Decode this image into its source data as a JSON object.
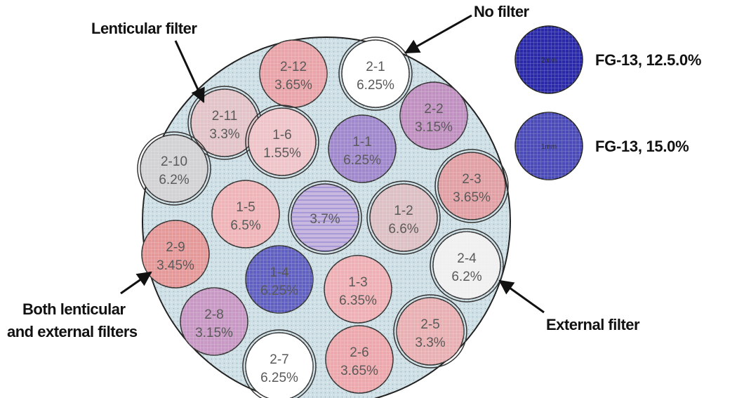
{
  "callouts": {
    "lenticular": "Lenticular filter",
    "no_filter": "No filter",
    "both_line1": "Both lenticular",
    "both_line2": "and external filters",
    "external": "External filter"
  },
  "legend": [
    {
      "inner": "2mm",
      "label": "FG-13, 12.5.0%",
      "fill": "#2a2aa8"
    },
    {
      "inner": "1mm",
      "label": "FG-13, 15.0%",
      "fill": "#4b4bb8"
    }
  ],
  "cells": [
    {
      "id": "2-12",
      "value": "3.65%",
      "fill": "#e8a4a8",
      "ring": false
    },
    {
      "id": "2-1",
      "value": "6.25%",
      "fill": "#ffffff",
      "ring": true
    },
    {
      "id": "2-11",
      "value": "3.3%",
      "fill": "#e2c4c8",
      "ring": true
    },
    {
      "id": "2-2",
      "value": "3.15%",
      "fill": "#c090c0",
      "ring": false
    },
    {
      "id": "1-6",
      "value": "1.55%",
      "fill": "#eec4c8",
      "ring": true
    },
    {
      "id": "1-1",
      "value": "6.25%",
      "fill": "#a088cc",
      "ring": false
    },
    {
      "id": "2-10",
      "value": "6.2%",
      "fill": "#d2d2d4",
      "ring": true
    },
    {
      "id": "2-3",
      "value": "3.65%",
      "fill": "#e0a0a4",
      "ring": true
    },
    {
      "id": "1-5",
      "value": "6.5%",
      "fill": "#eeb4b8",
      "ring": false
    },
    {
      "id": "",
      "value": "3.7%",
      "fill": "#c8b8e0",
      "ring": true
    },
    {
      "id": "1-2",
      "value": "6.6%",
      "fill": "#dcc0c4",
      "ring": true
    },
    {
      "id": "2-9",
      "value": "3.45%",
      "fill": "#e49898",
      "ring": false
    },
    {
      "id": "2-4",
      "value": "6.2%",
      "fill": "#f0f0f0",
      "ring": true
    },
    {
      "id": "1-4",
      "value": "6.25%",
      "fill": "#6060c0",
      "ring": false
    },
    {
      "id": "1-3",
      "value": "6.35%",
      "fill": "#eeb0b4",
      "ring": false
    },
    {
      "id": "2-5",
      "value": "3.3%",
      "fill": "#e8b0b2",
      "ring": true
    },
    {
      "id": "2-8",
      "value": "3.15%",
      "fill": "#c898c4",
      "ring": false
    },
    {
      "id": "2-7",
      "value": "6.25%",
      "fill": "#ffffff",
      "ring": true
    },
    {
      "id": "2-6",
      "value": "3.65%",
      "fill": "#eca8ac",
      "ring": false
    }
  ],
  "colors": {
    "plate": "#cfe0e6",
    "outline": "#222222"
  }
}
